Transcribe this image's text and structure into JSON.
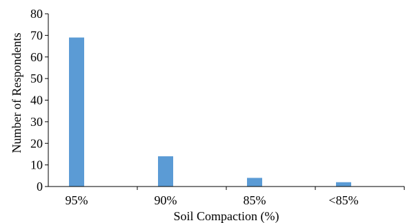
{
  "chart_data": {
    "type": "bar",
    "categories": [
      "95%",
      "90%",
      "85%",
      "<85%"
    ],
    "values": [
      69,
      14,
      4,
      2
    ],
    "xlabel": "Soil Compaction (%)",
    "ylabel": "Number of Respondents",
    "ylim": [
      0,
      80
    ],
    "yticks": [
      0,
      10,
      20,
      30,
      40,
      50,
      60,
      70,
      80
    ],
    "grid": false,
    "legend": "none",
    "bar_color": "#5b9bd5",
    "axis_color": "#000000"
  }
}
